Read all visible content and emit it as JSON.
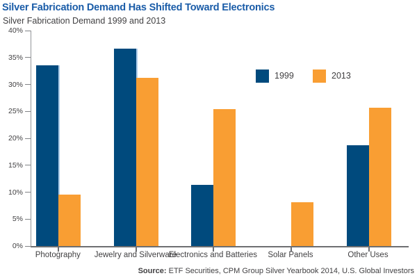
{
  "header": {
    "title": "Silver Fabrication Demand Has Shifted Toward Electronics",
    "subtitle": "Silver Fabrication Demand 1999 and 2013"
  },
  "chart_data": {
    "type": "bar",
    "title": "Silver Fabrication Demand Has Shifted Toward Electronics",
    "subtitle": "Silver Fabrication Demand 1999 and 2013",
    "categories": [
      "Photography",
      "Jewelry and Silverware",
      "Electronics and Batteries",
      "Solar Panels",
      "Other Uses"
    ],
    "series": [
      {
        "name": "1999",
        "color": "#004A7D",
        "values": [
          33.5,
          36.6,
          11.3,
          0,
          18.7
        ]
      },
      {
        "name": "2013",
        "color": "#F99E33",
        "values": [
          9.5,
          31.2,
          25.4,
          8.1,
          25.7
        ]
      }
    ],
    "xlabel": "",
    "ylabel": "",
    "ylim": [
      0,
      40
    ],
    "ytick_step": 5,
    "ytick_labels": [
      "0%",
      "5%",
      "10%",
      "15%",
      "20%",
      "25%",
      "30%",
      "35%",
      "40%"
    ],
    "grid": false,
    "legend_position": "inside-top-right"
  },
  "legend": {
    "items": [
      {
        "label": "1999",
        "color": "#004A7D"
      },
      {
        "label": "2013",
        "color": "#F99E33"
      }
    ]
  },
  "footer": {
    "source_label": "Source:",
    "source_text": " ETF Securities, CPM Group Silver Yearbook 2014, U.S. Global Investors"
  },
  "colors": {
    "title_blue": "#1A5CA8",
    "bar_1999": "#004A7D",
    "bar_1999_highlight": "#AECDE9",
    "bar_2013": "#F99E33",
    "axis_line": "#6D6E71",
    "tick_text": "#414042"
  }
}
